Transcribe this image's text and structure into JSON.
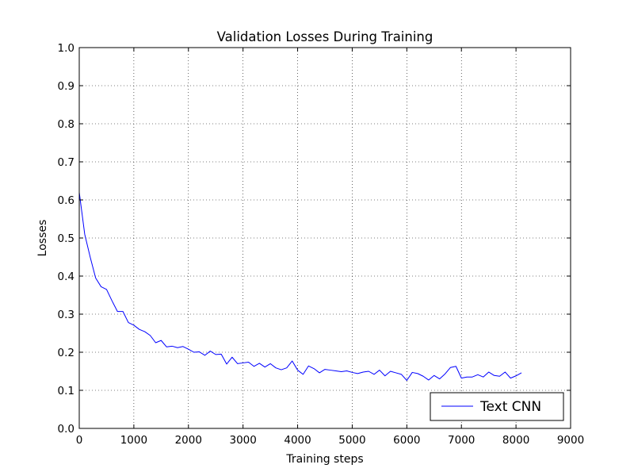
{
  "chart_data": {
    "type": "line",
    "title": "Validation Losses During Training",
    "xlabel": "Training steps",
    "ylabel": "Losses",
    "xlim": [
      0,
      9000
    ],
    "ylim": [
      0.0,
      1.0
    ],
    "x_ticks": [
      "0",
      "1000",
      "2000",
      "3000",
      "4000",
      "5000",
      "6000",
      "7000",
      "8000",
      "9000"
    ],
    "y_ticks": [
      "0.0",
      "0.1",
      "0.2",
      "0.3",
      "0.4",
      "0.5",
      "0.6",
      "0.7",
      "0.8",
      "0.9",
      "1.0"
    ],
    "grid": true,
    "legend_position": "lower right",
    "series": [
      {
        "name": "Text CNN",
        "color": "#0000ff",
        "x": [
          0,
          100,
          200,
          300,
          400,
          500,
          600,
          700,
          800,
          900,
          1000,
          1100,
          1200,
          1300,
          1400,
          1500,
          1600,
          1700,
          1800,
          1900,
          2000,
          2100,
          2200,
          2300,
          2400,
          2500,
          2600,
          2700,
          2800,
          2900,
          3000,
          3100,
          3200,
          3300,
          3400,
          3500,
          3600,
          3700,
          3800,
          3900,
          4000,
          4100,
          4200,
          4300,
          4400,
          4500,
          4600,
          4700,
          4800,
          4900,
          5000,
          5100,
          5200,
          5300,
          5400,
          5500,
          5600,
          5700,
          5800,
          5900,
          6000,
          6100,
          6200,
          6300,
          6400,
          6500,
          6600,
          6700,
          6800,
          6900,
          7000,
          7100,
          7200,
          7300,
          7400,
          7500,
          7600,
          7700,
          7800,
          7900,
          8000,
          8100
        ],
        "y": [
          0.62,
          0.51,
          0.45,
          0.395,
          0.372,
          0.365,
          0.335,
          0.307,
          0.307,
          0.278,
          0.271,
          0.26,
          0.254,
          0.244,
          0.225,
          0.231,
          0.214,
          0.216,
          0.212,
          0.215,
          0.208,
          0.2,
          0.201,
          0.192,
          0.203,
          0.194,
          0.195,
          0.169,
          0.187,
          0.17,
          0.172,
          0.174,
          0.163,
          0.171,
          0.161,
          0.17,
          0.159,
          0.154,
          0.159,
          0.177,
          0.153,
          0.142,
          0.164,
          0.157,
          0.146,
          0.155,
          0.153,
          0.151,
          0.149,
          0.151,
          0.147,
          0.144,
          0.148,
          0.15,
          0.142,
          0.153,
          0.138,
          0.15,
          0.146,
          0.142,
          0.126,
          0.147,
          0.144,
          0.137,
          0.127,
          0.139,
          0.13,
          0.143,
          0.16,
          0.163,
          0.132,
          0.135,
          0.135,
          0.141,
          0.135,
          0.148,
          0.139,
          0.137,
          0.148,
          0.132,
          0.138,
          0.146
        ]
      }
    ]
  }
}
